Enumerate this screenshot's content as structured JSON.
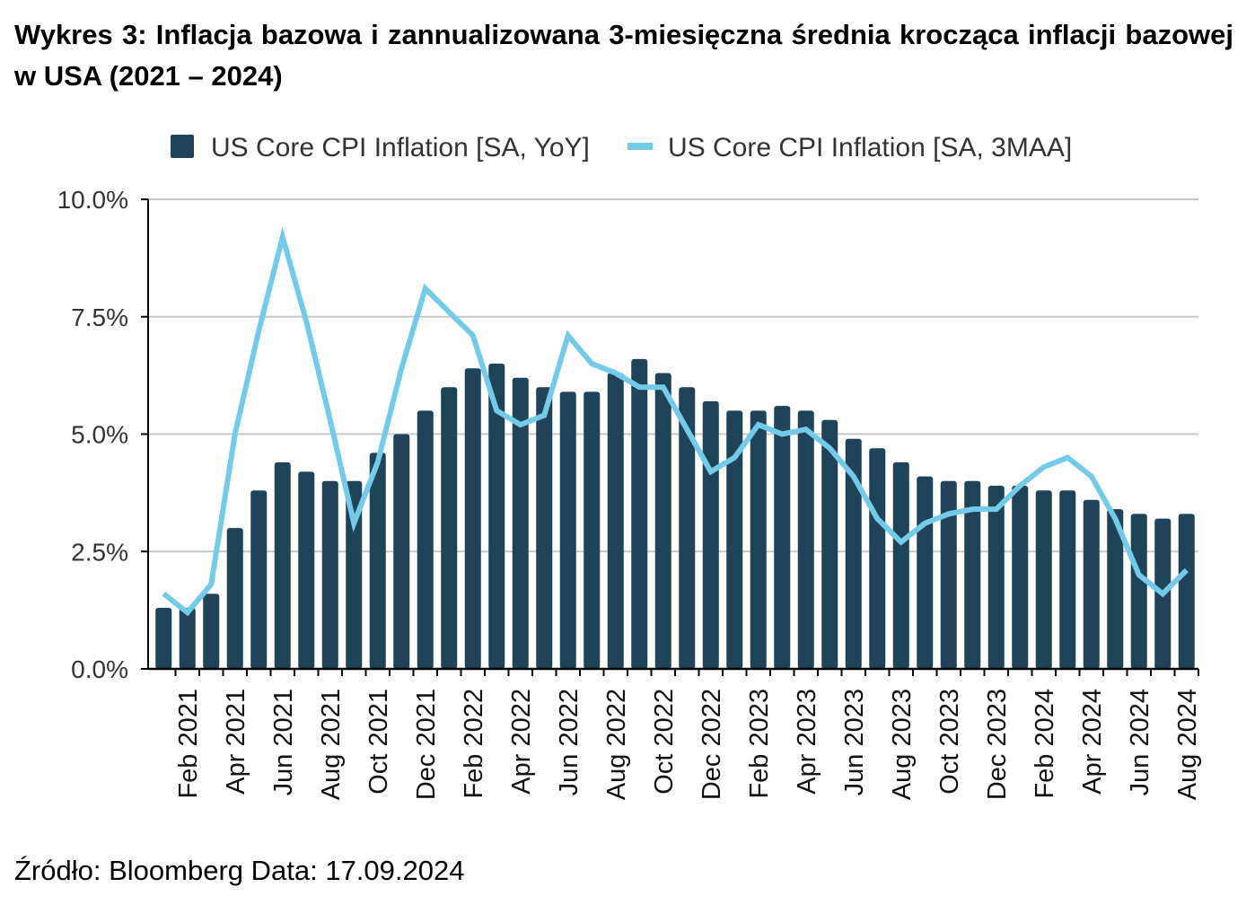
{
  "title": "Wykres 3: Inflacja bazowa i zannualizowana 3-miesięczna średnia krocząca inflacji bazowej w USA (2021 – 2024)",
  "source": "Źródło: Bloomberg Data: 17.09.2024",
  "colors": {
    "bar": "#1f4459",
    "line": "#74cbe8",
    "grid": "#c8c8c8",
    "axis": "#000000"
  },
  "chart_data": {
    "type": "bar+line",
    "ylim": [
      0,
      10
    ],
    "yticks": [
      "0.0%",
      "2.5%",
      "5.0%",
      "7.5%",
      "10.0%"
    ],
    "ytick_values": [
      0,
      2.5,
      5,
      7.5,
      10
    ],
    "grid": true,
    "legend": "top",
    "categories": [
      "Jan 2021",
      "Feb 2021",
      "Mar 2021",
      "Apr 2021",
      "May 2021",
      "Jun 2021",
      "Jul 2021",
      "Aug 2021",
      "Sep 2021",
      "Oct 2021",
      "Nov 2021",
      "Dec 2021",
      "Jan 2022",
      "Feb 2022",
      "Mar 2022",
      "Apr 2022",
      "May 2022",
      "Jun 2022",
      "Jul 2022",
      "Aug 2022",
      "Sep 2022",
      "Oct 2022",
      "Nov 2022",
      "Dec 2022",
      "Jan 2023",
      "Feb 2023",
      "Mar 2023",
      "Apr 2023",
      "May 2023",
      "Jun 2023",
      "Jul 2023",
      "Aug 2023",
      "Sep 2023",
      "Oct 2023",
      "Nov 2023",
      "Dec 2023",
      "Jan 2024",
      "Feb 2024",
      "Mar 2024",
      "Apr 2024",
      "May 2024",
      "Jun 2024",
      "Jul 2024",
      "Aug 2024"
    ],
    "xtick_labels": [
      "Feb 2021",
      "Apr 2021",
      "Jun 2021",
      "Aug 2021",
      "Oct 2021",
      "Dec 2021",
      "Feb 2022",
      "Apr 2022",
      "Jun 2022",
      "Aug 2022",
      "Oct 2022",
      "Dec 2022",
      "Feb 2023",
      "Apr 2023",
      "Jun 2023",
      "Aug 2023",
      "Oct 2023",
      "Dec 2023",
      "Feb 2024",
      "Apr 2024",
      "Jun 2024",
      "Aug 2024"
    ],
    "series": [
      {
        "name": "US Core CPI Inflation [SA, YoY]",
        "type": "bar",
        "values": [
          1.3,
          1.3,
          1.6,
          3.0,
          3.8,
          4.4,
          4.2,
          4.0,
          4.0,
          4.6,
          5.0,
          5.5,
          6.0,
          6.4,
          6.5,
          6.2,
          6.0,
          5.9,
          5.9,
          6.3,
          6.6,
          6.3,
          6.0,
          5.7,
          5.5,
          5.5,
          5.6,
          5.5,
          5.3,
          4.9,
          4.7,
          4.4,
          4.1,
          4.0,
          4.0,
          3.9,
          3.9,
          3.8,
          3.8,
          3.6,
          3.4,
          3.3,
          3.2,
          3.3
        ]
      },
      {
        "name": "US Core CPI Inflation [SA, 3MAA]",
        "type": "line",
        "values": [
          1.6,
          1.2,
          1.8,
          5.0,
          7.2,
          9.2,
          7.4,
          5.3,
          3.1,
          4.4,
          6.4,
          8.1,
          7.6,
          7.1,
          5.5,
          5.2,
          5.4,
          7.1,
          6.5,
          6.3,
          6.0,
          6.0,
          5.1,
          4.2,
          4.5,
          5.2,
          5.0,
          5.1,
          4.7,
          4.1,
          3.2,
          2.7,
          3.1,
          3.3,
          3.4,
          3.4,
          3.9,
          4.3,
          4.5,
          4.1,
          3.2,
          2.0,
          1.6,
          2.1
        ]
      }
    ]
  }
}
